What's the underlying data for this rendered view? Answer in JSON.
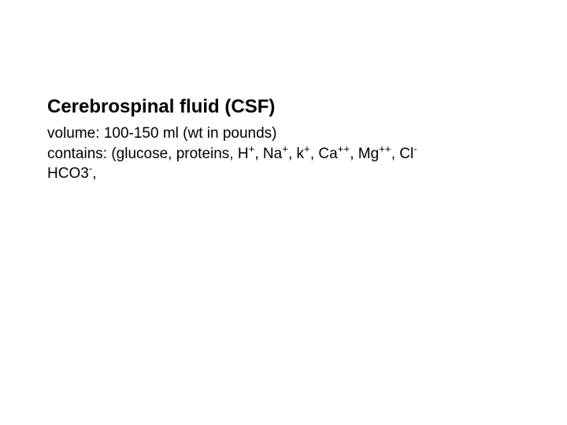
{
  "slide": {
    "heading": "Cerebrospinal fluid (CSF)",
    "volume_label": "volume:",
    "volume_value": "100-150 ml (wt in pounds)",
    "contains_label": "contains:",
    "contains_prefix": "(glucose, proteins,",
    "ions": [
      {
        "base": "H",
        "sup": "+"
      },
      {
        "base": "Na",
        "sup": "+"
      },
      {
        "base": "k",
        "sup": "+"
      },
      {
        "base": "Ca",
        "sup": "++"
      },
      {
        "base": "Mg",
        "sup": "++"
      },
      {
        "base": "Cl",
        "sup": "-"
      }
    ],
    "last_line_base": "HCO3",
    "last_line_sup": "-",
    "last_line_tail": ",",
    "colors": {
      "background": "#ffffff",
      "text": "#000000"
    },
    "font": {
      "family": "Comic Sans MS style",
      "heading_size_pt": 18,
      "body_size_pt": 14
    }
  }
}
